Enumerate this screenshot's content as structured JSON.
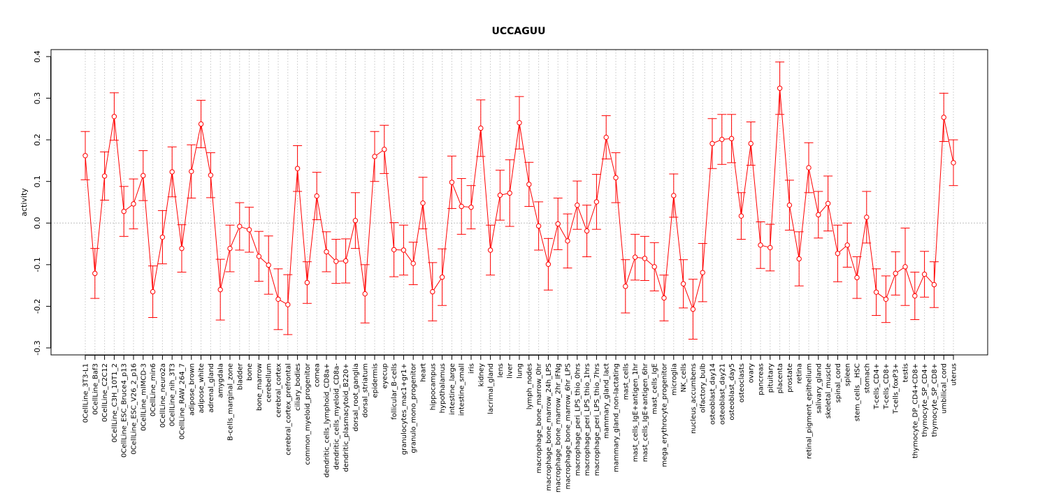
{
  "chart_data": {
    "type": "line",
    "title": "UCCAGUU",
    "xlabel": "",
    "ylabel": "activity",
    "ylim": [
      -0.3,
      0.4
    ],
    "yticks": [
      -0.3,
      -0.2,
      -0.1,
      0.0,
      0.1,
      0.2,
      0.3,
      0.4
    ],
    "ytick_labels": [
      "-0.3",
      "-0.2",
      "-0.1",
      "0.0",
      "0.1",
      "0.2",
      "0.3",
      "0.4"
    ],
    "reference_line": 0.0,
    "color": "#ff0000",
    "grid": true,
    "categories": [
      "0CellLine_3T3-L1",
      "0CellLine_Baf3",
      "0CellLine_C2C12",
      "0CellLine_C3H_10T1_2",
      "0CellLine_ESC_Bruce4_p13",
      "0CellLine_ESC_V26_2_p16",
      "0CellLine_mIMCD-3",
      "0CellLine_min6",
      "0CellLine_neuro2a",
      "0CellLine_nih_3T3",
      "0CellLine_RAW_264_7",
      "adipose_brown",
      "adipose_white",
      "adrenal_gland",
      "amygdala",
      "B-cells_marginal_zone",
      "bladder",
      "bone",
      "bone_marrow",
      "cerebellum",
      "cerebral_cortex",
      "cerebral_cortex_prefrontal",
      "ciliary_bodies",
      "common_myeloid_progenitor",
      "cornea",
      "dendritic_cells_lymphoid_CD8a+",
      "dendritic_cells_myeloid_CD8a-",
      "dendritic_plasmacytoid_B220+",
      "dorsal_root_ganglia",
      "dorsal_striatum",
      "epidermis",
      "eyecup",
      "follicular_B-cells",
      "granulocytes_mac1+gr1+",
      "granulo_mono_progenitor",
      "heart",
      "hippocampus",
      "hypothalamus",
      "intestine_large",
      "intestine_small",
      "iris",
      "kidney",
      "lacrimal_gland",
      "lens",
      "liver",
      "lung",
      "lymph_nodes",
      "macrophage_bone_marrow_0hr",
      "macrophage_bone_marrow_24h_LPS",
      "macrophage_bone_marrow_2hr_IFNg",
      "macrophage_bone_marrow_6hr_LPS",
      "macrophage_peri_LPS_thio_0hrs",
      "macrophage_peri_LPS_thio_1hrs",
      "macrophage_peri_LPS_thio_7hrs",
      "mammary_gland_lact",
      "mammary_gland_non-lactating",
      "mast_cells",
      "mast_cells_IgE+antigen_1hr",
      "mast_cells_IgE+antigen_6hr",
      "mast_cells_IgE",
      "mega_erythrocyte_progenitor",
      "microglia",
      "NK_cells",
      "nucleus_accumbens",
      "olfactory_bulb",
      "osteoblast_day14",
      "osteoblast_day21",
      "osteoblast_day5",
      "osteoclasts",
      "ovary",
      "pancreas",
      "pituitary",
      "placenta",
      "prostate",
      "retina",
      "retinal_pigment_epithelium",
      "salivary_gland",
      "skeletal_muscle",
      "spinal_cord",
      "spleen",
      "stem_cells__HSC",
      "stomach",
      "T-cells_CD4+",
      "T-cells_CD8+",
      "T-cells_foxP3+",
      "testis",
      "thymocyte_DP_CD4+CD8+",
      "thymocyte_SP_CD4+",
      "thymocyte_SP_CD8+",
      "umbilical_cord",
      "uterus"
    ],
    "values": [
      0.162,
      -0.121,
      0.113,
      0.256,
      0.028,
      0.046,
      0.114,
      -0.165,
      -0.034,
      0.123,
      -0.061,
      0.124,
      0.238,
      0.115,
      -0.16,
      -0.061,
      -0.008,
      -0.016,
      -0.08,
      -0.101,
      -0.183,
      -0.196,
      0.131,
      -0.143,
      0.065,
      -0.069,
      -0.092,
      -0.091,
      0.006,
      -0.17,
      0.16,
      0.177,
      -0.064,
      -0.065,
      -0.097,
      0.048,
      -0.165,
      -0.13,
      0.098,
      0.04,
      0.038,
      0.228,
      -0.065,
      0.067,
      0.072,
      0.241,
      0.093,
      -0.007,
      -0.099,
      -0.002,
      -0.043,
      0.043,
      -0.019,
      0.051,
      0.206,
      0.109,
      -0.152,
      -0.082,
      -0.085,
      -0.105,
      -0.18,
      0.066,
      -0.146,
      -0.207,
      -0.119,
      0.191,
      0.201,
      0.203,
      0.017,
      0.191,
      -0.053,
      -0.059,
      0.324,
      0.043,
      -0.086,
      0.133,
      0.02,
      0.047,
      -0.073,
      -0.053,
      -0.131,
      0.014,
      -0.166,
      -0.183,
      -0.121,
      -0.105,
      -0.175,
      -0.123,
      -0.148,
      0.254,
      0.145
    ],
    "errors": [
      0.058,
      0.06,
      0.058,
      0.057,
      0.06,
      0.06,
      0.06,
      0.062,
      0.064,
      0.06,
      0.057,
      0.064,
      0.057,
      0.054,
      0.073,
      0.056,
      0.057,
      0.054,
      0.06,
      0.07,
      0.073,
      0.072,
      0.055,
      0.05,
      0.057,
      0.048,
      0.053,
      0.053,
      0.067,
      0.07,
      0.06,
      0.058,
      0.065,
      0.06,
      0.051,
      0.062,
      0.07,
      0.068,
      0.063,
      0.067,
      0.052,
      0.068,
      0.06,
      0.06,
      0.08,
      0.063,
      0.053,
      0.058,
      0.062,
      0.062,
      0.065,
      0.058,
      0.062,
      0.066,
      0.052,
      0.06,
      0.064,
      0.055,
      0.053,
      0.058,
      0.055,
      0.052,
      0.058,
      0.072,
      0.07,
      0.06,
      0.06,
      0.058,
      0.056,
      0.052,
      0.056,
      0.056,
      0.063,
      0.06,
      0.065,
      0.06,
      0.056,
      0.066,
      0.068,
      0.053,
      0.05,
      0.062,
      0.056,
      0.056,
      0.052,
      0.093,
      0.057,
      0.055,
      0.055,
      0.058,
      0.055
    ]
  }
}
